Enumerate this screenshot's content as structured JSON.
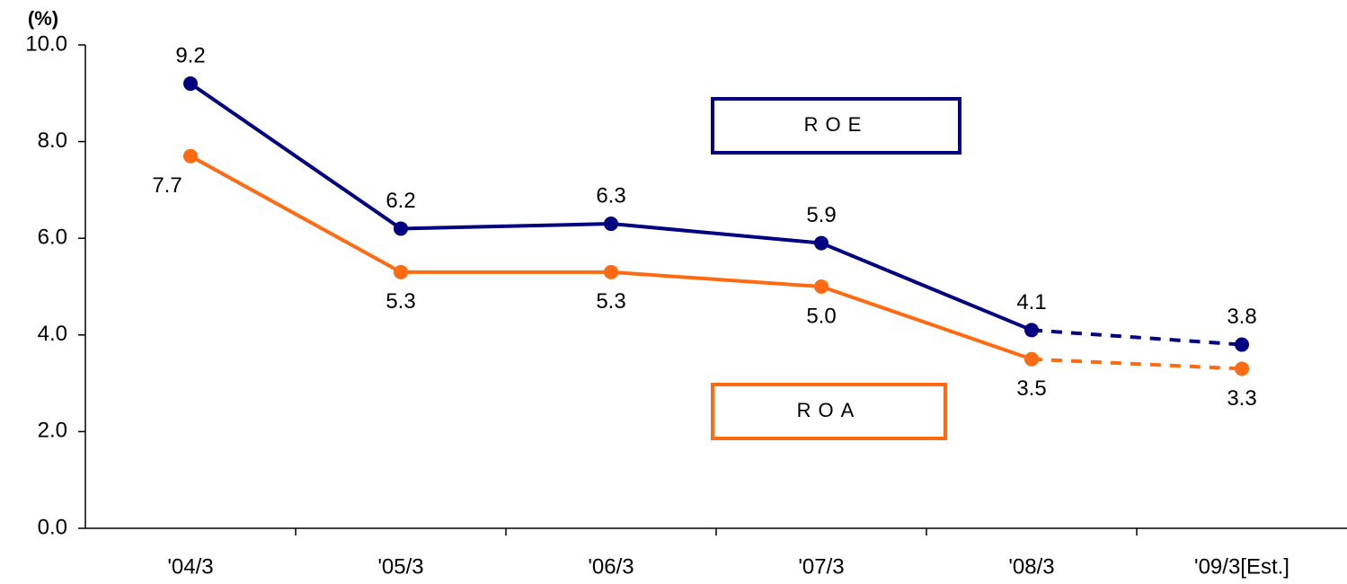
{
  "chart_data": {
    "type": "line",
    "y_unit": "(%)",
    "categories": [
      "'04/3",
      "'05/3",
      "'06/3",
      "'07/3",
      "'08/3",
      "'09/3[Est.]"
    ],
    "ylim": [
      0,
      10
    ],
    "yticks": [
      {
        "value": 0,
        "label": "0.0"
      },
      {
        "value": 2,
        "label": "2.0"
      },
      {
        "value": 4,
        "label": "4.0"
      },
      {
        "value": 6,
        "label": "6.0"
      },
      {
        "value": 8,
        "label": "8.0"
      },
      {
        "value": 10,
        "label": "10.0"
      }
    ],
    "dashed_from_index": 4,
    "series": [
      {
        "name": "ROE",
        "color": "#000080",
        "values": [
          9.2,
          6.2,
          6.3,
          5.9,
          4.1,
          3.8
        ],
        "value_labels": [
          "9.2",
          "6.2",
          "6.3",
          "5.9",
          "4.1",
          "3.8"
        ],
        "label_position": "above"
      },
      {
        "name": "ROA",
        "color": "#ff6a13",
        "values": [
          7.7,
          5.3,
          5.3,
          5.0,
          3.5,
          3.3
        ],
        "value_labels": [
          "7.7",
          "5.3",
          "5.3",
          "5.0",
          "3.5",
          "3.3"
        ],
        "label_position": "below"
      }
    ]
  }
}
